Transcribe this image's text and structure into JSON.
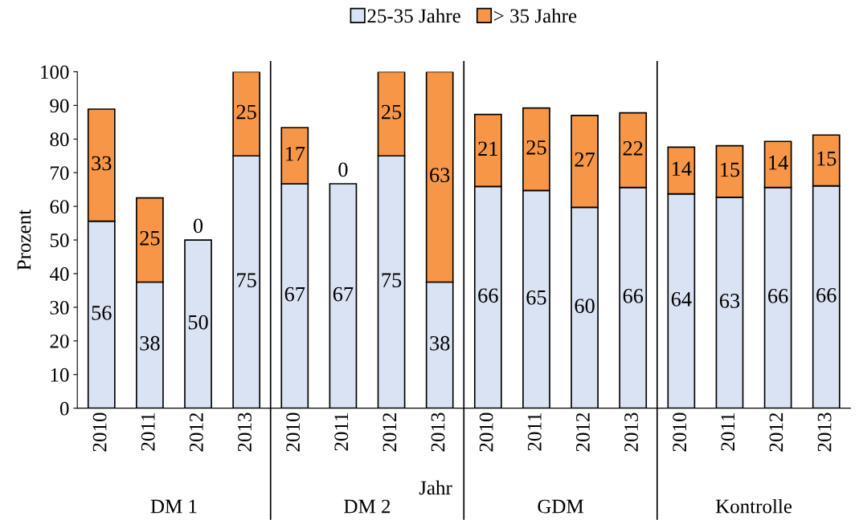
{
  "chart_data": {
    "type": "bar",
    "stacked": true,
    "ylabel": "Prozent",
    "xlabel": "Jahr",
    "categories": [
      "2010",
      "2011",
      "2012",
      "2013",
      "2010",
      "2011",
      "2012",
      "2013",
      "2010",
      "2011",
      "2012",
      "2013",
      "2010",
      "2011",
      "2012",
      "2013"
    ],
    "series": [
      {
        "name": "25-35 Jahre",
        "color": "#dae3f3",
        "values": [
          55.6,
          37.5,
          50,
          75,
          66.7,
          66.7,
          75,
          37.5,
          65.9,
          64.7,
          59.7,
          65.6,
          63.7,
          62.7,
          65.6,
          66.1
        ],
        "value_labels": [
          "56",
          "38",
          "50",
          "75",
          "67",
          "67",
          "75",
          "38",
          "66",
          "65",
          "60",
          "66",
          "64",
          "63",
          "66",
          "66"
        ]
      },
      {
        "name": "> 35 Jahre",
        "color": "#f79646",
        "values": [
          33.3,
          25,
          0,
          25,
          16.7,
          0,
          25,
          62.5,
          21.4,
          24.5,
          27.3,
          22.2,
          13.9,
          15.3,
          13.7,
          15.1
        ],
        "value_labels": [
          "33",
          "25",
          "0",
          "25",
          "17",
          "0",
          "25",
          "63",
          "21",
          "25",
          "27",
          "22",
          "14",
          "15",
          "14",
          "15"
        ]
      }
    ],
    "annotations": [
      "DM 1",
      "DM 2",
      "GDM",
      "Kontrolle"
    ],
    "ylim": [
      0,
      100
    ],
    "yticks": [
      0,
      10,
      20,
      30,
      40,
      50,
      60,
      70,
      80,
      90,
      100
    ],
    "grid": false,
    "legend": "top"
  }
}
